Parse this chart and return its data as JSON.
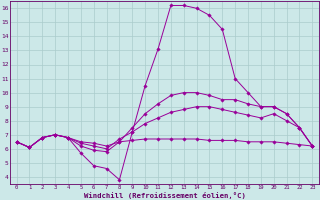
{
  "xlabel": "Windchill (Refroidissement éolien,°C)",
  "bg_color": "#cce8e8",
  "line_color": "#990099",
  "grid_color": "#aacccc",
  "axis_color": "#660066",
  "tick_color": "#660066",
  "xlim_min": -0.5,
  "xlim_max": 23.5,
  "ylim_min": 3.5,
  "ylim_max": 16.5,
  "xticks": [
    0,
    1,
    2,
    3,
    4,
    5,
    6,
    7,
    8,
    9,
    10,
    11,
    12,
    13,
    14,
    15,
    16,
    17,
    18,
    19,
    20,
    21,
    22,
    23
  ],
  "yticks": [
    4,
    5,
    6,
    7,
    8,
    9,
    10,
    11,
    12,
    13,
    14,
    15,
    16
  ],
  "lines": [
    {
      "x": [
        0,
        1,
        2,
        3,
        4,
        5,
        6,
        7,
        8,
        9,
        10,
        11,
        12,
        13,
        14,
        15,
        16,
        17,
        18,
        19,
        20,
        21,
        22,
        23
      ],
      "y": [
        6.5,
        6.1,
        6.8,
        7.0,
        6.8,
        5.7,
        4.8,
        4.6,
        3.8,
        7.2,
        10.5,
        13.1,
        16.2,
        16.2,
        16.0,
        15.5,
        14.5,
        11.0,
        10.0,
        9.0,
        9.0,
        8.5,
        7.5,
        6.2
      ]
    },
    {
      "x": [
        0,
        1,
        2,
        3,
        4,
        5,
        6,
        7,
        8,
        9,
        10,
        11,
        12,
        13,
        14,
        15,
        16,
        17,
        18,
        19,
        20,
        21,
        22,
        23
      ],
      "y": [
        6.5,
        6.1,
        6.8,
        7.0,
        6.8,
        6.2,
        5.9,
        5.8,
        6.5,
        7.5,
        8.5,
        9.2,
        9.8,
        10.0,
        10.0,
        9.8,
        9.5,
        9.5,
        9.2,
        9.0,
        9.0,
        8.5,
        7.5,
        6.2
      ]
    },
    {
      "x": [
        0,
        1,
        2,
        3,
        4,
        5,
        6,
        7,
        8,
        9,
        10,
        11,
        12,
        13,
        14,
        15,
        16,
        17,
        18,
        19,
        20,
        21,
        22,
        23
      ],
      "y": [
        6.5,
        6.1,
        6.8,
        7.0,
        6.8,
        6.4,
        6.2,
        6.0,
        6.7,
        7.2,
        7.8,
        8.2,
        8.6,
        8.8,
        9.0,
        9.0,
        8.8,
        8.6,
        8.4,
        8.2,
        8.5,
        8.0,
        7.5,
        6.2
      ]
    },
    {
      "x": [
        0,
        1,
        2,
        3,
        4,
        5,
        6,
        7,
        8,
        9,
        10,
        11,
        12,
        13,
        14,
        15,
        16,
        17,
        18,
        19,
        20,
        21,
        22,
        23
      ],
      "y": [
        6.5,
        6.1,
        6.8,
        7.0,
        6.8,
        6.5,
        6.4,
        6.2,
        6.5,
        6.6,
        6.7,
        6.7,
        6.7,
        6.7,
        6.7,
        6.6,
        6.6,
        6.6,
        6.5,
        6.5,
        6.5,
        6.4,
        6.3,
        6.2
      ]
    }
  ]
}
